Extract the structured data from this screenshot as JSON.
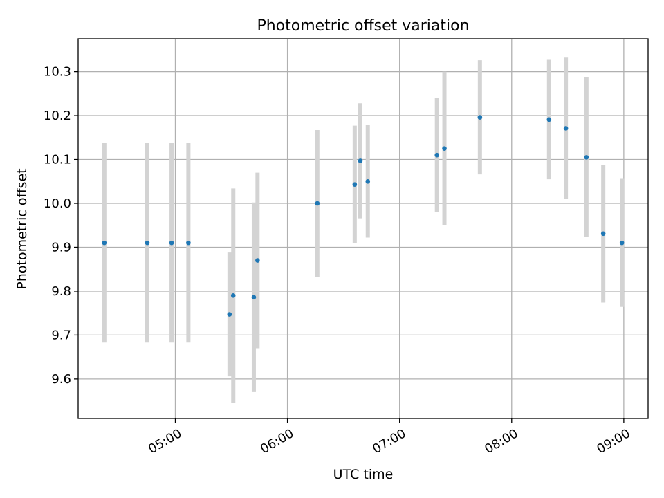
{
  "chart_data": {
    "type": "scatter",
    "title": "Photometric offset variation",
    "xlabel": "UTC time",
    "ylabel": "Photometric offset",
    "x_ticks": [
      "05:00",
      "06:00",
      "07:00",
      "08:00",
      "09:00"
    ],
    "y_ticks": [
      "9.6",
      "9.7",
      "9.8",
      "9.9",
      "10.0",
      "10.1",
      "10.2",
      "10.3"
    ],
    "xlim": [
      "04:08",
      "09:13"
    ],
    "ylim": [
      9.51,
      10.375
    ],
    "grid": true,
    "legend": "none",
    "colors": {
      "marker": "#1f77b4",
      "errorbar": "#d3d3d3",
      "grid": "#b0b0b0"
    },
    "points": [
      {
        "time": "04:22",
        "y": 9.91,
        "y_err": 0.227
      },
      {
        "time": "04:45",
        "y": 9.91,
        "y_err": 0.227
      },
      {
        "time": "04:58",
        "y": 9.91,
        "y_err": 0.227
      },
      {
        "time": "05:07",
        "y": 9.91,
        "y_err": 0.227
      },
      {
        "time": "05:29",
        "y": 9.747,
        "y_err": 0.141
      },
      {
        "time": "05:31",
        "y": 9.79,
        "y_err": 0.244
      },
      {
        "time": "05:42",
        "y": 9.786,
        "y_err": 0.216
      },
      {
        "time": "05:44",
        "y": 9.87,
        "y_err": 0.2
      },
      {
        "time": "06:16",
        "y": 10.0,
        "y_err": 0.167
      },
      {
        "time": "06:36",
        "y": 10.043,
        "y_err": 0.134
      },
      {
        "time": "06:39",
        "y": 10.097,
        "y_err": 0.131
      },
      {
        "time": "06:43",
        "y": 10.05,
        "y_err": 0.128
      },
      {
        "time": "07:20",
        "y": 10.11,
        "y_err": 0.13
      },
      {
        "time": "07:24",
        "y": 10.125,
        "y_err": 0.175
      },
      {
        "time": "07:43",
        "y": 10.196,
        "y_err": 0.13
      },
      {
        "time": "08:20",
        "y": 10.191,
        "y_err": 0.136
      },
      {
        "time": "08:29",
        "y": 10.171,
        "y_err": 0.161
      },
      {
        "time": "08:40",
        "y": 10.105,
        "y_err": 0.182
      },
      {
        "time": "08:49",
        "y": 9.931,
        "y_err": 0.157
      },
      {
        "time": "08:59",
        "y": 9.91,
        "y_err": 0.146
      }
    ]
  }
}
